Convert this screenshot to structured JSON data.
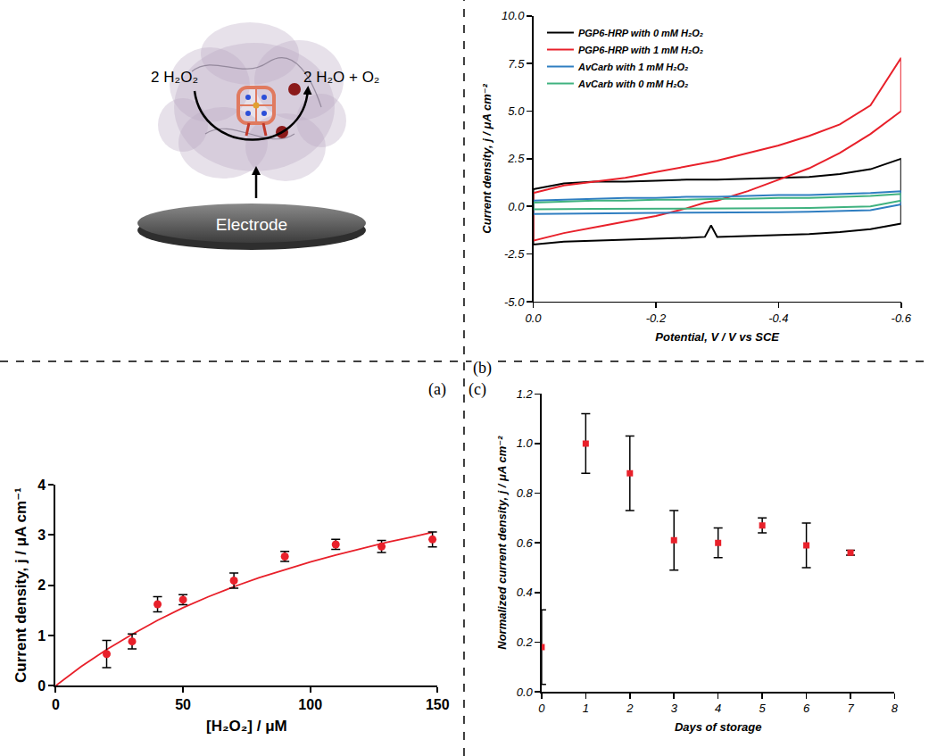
{
  "diagram": {
    "reaction_left": "2 H₂O₂",
    "reaction_right": "2 H₂O + O₂",
    "electrode": "Electrode"
  },
  "panel_labels": [
    "(b)",
    "(a)",
    "(c)"
  ],
  "chart_data": [
    {
      "type": "line",
      "x_label": "Potential, V / V vs SCE",
      "y_label": "Current density, j / μA cm⁻²",
      "xlim": [
        0,
        -0.6
      ],
      "xticks": [
        {
          "value": 0,
          "label": "0.0"
        },
        -0.2,
        -0.4,
        -0.6
      ],
      "ylim": [
        -5,
        10
      ],
      "yticks": [
        {
          "value": -5,
          "label": "-5.0"
        },
        -2.5,
        {
          "value": 0,
          "label": "0.0"
        },
        2.5,
        {
          "value": 5,
          "label": "5.0"
        },
        7.5,
        {
          "value": 10,
          "label": "10.0"
        }
      ],
      "legend": "top left",
      "x": [
        0,
        -0.05,
        -0.1,
        -0.15,
        -0.2,
        -0.25,
        -0.3,
        -0.35,
        -0.4,
        -0.45,
        -0.5,
        -0.55,
        -0.6,
        -0.6,
        -0.55,
        -0.5,
        -0.45,
        -0.4,
        -0.35,
        -0.3,
        -0.29,
        -0.28,
        -0.25,
        -0.2,
        -0.15,
        -0.1,
        -0.05,
        0,
        0
      ],
      "series": [
        {
          "name": "PGP6-HRP with 0 mM H₂O₂",
          "color": "#000000",
          "values": [
            0.9,
            1.2,
            1.3,
            1.3,
            1.35,
            1.4,
            1.4,
            1.45,
            1.5,
            1.55,
            1.7,
            1.95,
            2.5,
            -0.9,
            -1.2,
            -1.35,
            -1.45,
            -1.5,
            -1.55,
            -1.6,
            -1.0,
            -1.6,
            -1.65,
            -1.7,
            -1.75,
            -1.8,
            -1.85,
            -2.0,
            0.9
          ]
        },
        {
          "name": "PGP6-HRP with 1 mM H₂O₂",
          "color": "#e8202a",
          "values": [
            0.7,
            1.1,
            1.3,
            1.5,
            1.8,
            2.1,
            2.4,
            2.8,
            3.2,
            3.7,
            4.3,
            5.3,
            7.8,
            5.0,
            3.8,
            2.8,
            2.0,
            1.4,
            0.8,
            0.3,
            0.25,
            0.2,
            -0.1,
            -0.5,
            -0.8,
            -1.1,
            -1.4,
            -1.8,
            0.7
          ]
        },
        {
          "name": "AvCarb with 1 mM H₂O₂",
          "color": "#2f7ec1",
          "values": [
            0.3,
            0.35,
            0.4,
            0.45,
            0.45,
            0.5,
            0.5,
            0.55,
            0.6,
            0.6,
            0.65,
            0.7,
            0.8,
            0.1,
            -0.2,
            -0.25,
            -0.28,
            -0.3,
            -0.3,
            -0.32,
            -0.32,
            -0.32,
            -0.33,
            -0.34,
            -0.35,
            -0.36,
            -0.38,
            -0.4,
            0.3
          ]
        },
        {
          "name": "AvCarb with 0 mM H₂O₂",
          "color": "#3fb27f",
          "values": [
            0.2,
            0.25,
            0.3,
            0.3,
            0.35,
            0.35,
            0.4,
            0.4,
            0.45,
            0.45,
            0.5,
            0.55,
            0.65,
            0.3,
            0.0,
            -0.05,
            -0.08,
            -0.1,
            -0.1,
            -0.1,
            -0.1,
            -0.1,
            -0.1,
            -0.12,
            -0.12,
            -0.13,
            -0.14,
            -0.15,
            0.2
          ]
        }
      ]
    },
    {
      "type": "scatter",
      "x_label": "[H₂O₂] / μM",
      "y_label": "Current density, j / μA cm⁻¹",
      "xlim": [
        0,
        150
      ],
      "xticks": [
        0,
        50,
        100,
        150
      ],
      "ylim": [
        0,
        4
      ],
      "yticks": [
        0,
        1,
        2,
        3,
        4
      ],
      "series": [
        {
          "type": "line",
          "color": "#e8202a",
          "x": [
            0,
            10,
            20,
            30,
            40,
            50,
            60,
            70,
            80,
            90,
            100,
            110,
            120,
            130,
            140,
            148
          ],
          "values": [
            0,
            0.38,
            0.72,
            1.02,
            1.3,
            1.55,
            1.77,
            1.97,
            2.15,
            2.31,
            2.46,
            2.6,
            2.73,
            2.85,
            2.96,
            3.05
          ]
        },
        {
          "type": "scatter",
          "color": "#e8202a",
          "marker": "circle",
          "x": [
            20,
            30,
            40,
            50,
            70,
            90,
            110,
            128,
            148
          ],
          "values": [
            0.63,
            0.88,
            1.62,
            1.71,
            2.09,
            2.57,
            2.81,
            2.77,
            2.91
          ],
          "error": [
            0.27,
            0.15,
            0.15,
            0.1,
            0.15,
            0.1,
            0.1,
            0.12,
            0.15
          ]
        }
      ]
    },
    {
      "type": "scatter",
      "x_label": "Days of storage",
      "y_label": "Normalized current density, j / μA cm⁻²",
      "xlim": [
        0,
        8
      ],
      "xticks": [
        0,
        1,
        2,
        3,
        4,
        5,
        6,
        7,
        8
      ],
      "ylim": [
        0,
        1.2
      ],
      "yticks": [
        {
          "value": 0,
          "label": "0.0"
        },
        0.2,
        0.4,
        0.6,
        0.8,
        {
          "value": 1,
          "label": "1.0"
        },
        1.2
      ],
      "series": [
        {
          "color": "#e8202a",
          "marker": "square",
          "x": [
            0,
            1,
            2,
            3,
            4,
            5,
            6,
            7
          ],
          "values": [
            0.18,
            1.0,
            0.88,
            0.61,
            0.6,
            0.67,
            0.59,
            0.56
          ],
          "error": [
            0.15,
            0.12,
            0.15,
            0.12,
            0.06,
            0.03,
            0.09,
            0.01
          ]
        }
      ]
    }
  ]
}
